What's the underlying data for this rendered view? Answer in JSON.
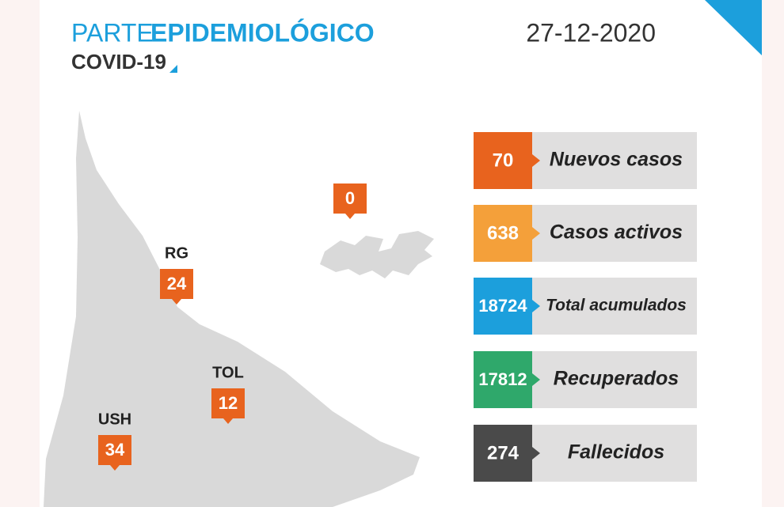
{
  "header": {
    "title_light": "PARTE",
    "title_bold": "EPIDEMIOLÓGICO",
    "subtitle": "COVID-19",
    "date": "27-12-2020"
  },
  "map_markers": [
    {
      "value": 0
    },
    {
      "label": "RG",
      "value": 24
    },
    {
      "label": "TOL",
      "value": 12
    },
    {
      "label": "USH",
      "value": 34
    }
  ],
  "stats": [
    {
      "value": 70,
      "label": "Nuevos casos",
      "color": "#e8631e"
    },
    {
      "value": 638,
      "label": "Casos activos",
      "color": "#f4a03a"
    },
    {
      "value": 18724,
      "label": "Total acumulados",
      "color": "#1c9fdc"
    },
    {
      "value": 17812,
      "label": "Recuperados",
      "color": "#2fa86b"
    },
    {
      "value": 274,
      "label": "Fallecidos",
      "color": "#4a4a4a"
    }
  ]
}
